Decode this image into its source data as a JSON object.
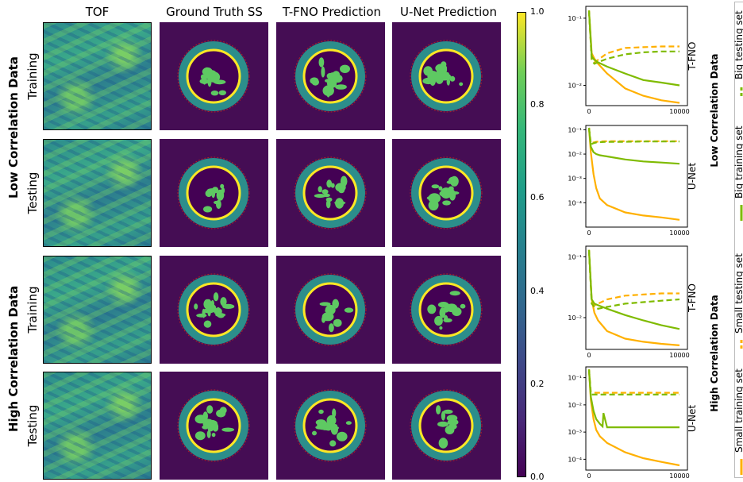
{
  "columns": [
    "TOF",
    "Ground Truth SS",
    "T-FNO Prediction",
    "U-Net Prediction"
  ],
  "groups": [
    {
      "label": "Low Correlation Data",
      "rows": [
        "Training",
        "Testing"
      ]
    },
    {
      "label": "High Correlation Data",
      "rows": [
        "Training",
        "Testing"
      ]
    }
  ],
  "colorbar": {
    "ticks": [
      "0.0",
      "0.2",
      "0.4",
      "0.6",
      "0.8",
      "1.0"
    ],
    "colormap": "viridis"
  },
  "right_group_labels": [
    "Low Correlation Data",
    "High Correlation Data"
  ],
  "legend": [
    "Small training set",
    "Small testing set",
    "Big training set",
    "Big testing set"
  ],
  "colors": {
    "small": "#ffb000",
    "big": "#7fbb00"
  },
  "chart_data": [
    {
      "type": "line",
      "model": "T-FNO",
      "log_y": true,
      "xlim": [
        0,
        10000
      ],
      "ylim": [
        0.005,
        0.15
      ],
      "x_ticks": [
        "0",
        "10000"
      ],
      "y_ticks": [
        "10⁻¹",
        "10⁻²"
      ],
      "series": [
        {
          "name": "Small training set",
          "x": [
            0,
            300,
            600,
            1000,
            2000,
            4000,
            6000,
            8000,
            10000
          ],
          "y": [
            0.13,
            0.03,
            0.025,
            0.021,
            0.015,
            0.009,
            0.007,
            0.006,
            0.0055
          ]
        },
        {
          "name": "Small testing set",
          "x": [
            0,
            300,
            600,
            1000,
            2000,
            4000,
            6000,
            8000,
            10000
          ],
          "y": [
            0.13,
            0.024,
            0.022,
            0.024,
            0.03,
            0.036,
            0.037,
            0.038,
            0.038
          ]
        },
        {
          "name": "Big training set",
          "x": [
            0,
            300,
            600,
            1000,
            2000,
            4000,
            6000,
            8000,
            10000
          ],
          "y": [
            0.13,
            0.027,
            0.024,
            0.022,
            0.019,
            0.015,
            0.012,
            0.011,
            0.01
          ]
        },
        {
          "name": "Big testing set",
          "x": [
            0,
            300,
            600,
            1000,
            2000,
            4000,
            6000,
            8000,
            10000
          ],
          "y": [
            0.13,
            0.024,
            0.021,
            0.022,
            0.025,
            0.029,
            0.031,
            0.032,
            0.032
          ]
        }
      ]
    },
    {
      "type": "line",
      "model": "U-Net",
      "log_y": true,
      "xlim": [
        0,
        10000
      ],
      "ylim": [
        1e-05,
        0.15
      ],
      "x_ticks": [
        "0",
        "10000"
      ],
      "y_ticks": [
        "10⁻¹",
        "10⁻²",
        "10⁻³",
        "10⁻⁴"
      ],
      "series": [
        {
          "name": "Small training set",
          "x": [
            0,
            200,
            500,
            800,
            1200,
            2000,
            4000,
            6000,
            8000,
            10000
          ],
          "y": [
            0.12,
            0.012,
            0.0015,
            0.0004,
            0.00015,
            8e-05,
            4e-05,
            3e-05,
            2.5e-05,
            2e-05
          ]
        },
        {
          "name": "Small testing set",
          "x": [
            0,
            200,
            500,
            800,
            1200,
            2000,
            4000,
            6000,
            8000,
            10000
          ],
          "y": [
            0.12,
            0.028,
            0.03,
            0.032,
            0.033,
            0.034,
            0.034,
            0.034,
            0.034,
            0.034
          ]
        },
        {
          "name": "Big training set",
          "x": [
            0,
            200,
            500,
            800,
            1200,
            2000,
            4000,
            6000,
            8000,
            10000
          ],
          "y": [
            0.12,
            0.02,
            0.012,
            0.01,
            0.009,
            0.008,
            0.006,
            0.005,
            0.0045,
            0.004
          ]
        },
        {
          "name": "Big testing set",
          "x": [
            0,
            200,
            500,
            800,
            1200,
            2000,
            4000,
            6000,
            8000,
            10000
          ],
          "y": [
            0.12,
            0.025,
            0.028,
            0.03,
            0.031,
            0.032,
            0.032,
            0.033,
            0.033,
            0.033
          ]
        }
      ]
    },
    {
      "type": "line",
      "model": "T-FNO",
      "log_y": true,
      "xlim": [
        0,
        10000
      ],
      "ylim": [
        0.003,
        0.15
      ],
      "x_ticks": [
        "0",
        "10000"
      ],
      "y_ticks": [
        "10⁻¹",
        "10⁻²"
      ],
      "series": [
        {
          "name": "Small training set",
          "x": [
            0,
            300,
            600,
            1000,
            2000,
            4000,
            6000,
            8000,
            10000
          ],
          "y": [
            0.13,
            0.02,
            0.012,
            0.009,
            0.006,
            0.0045,
            0.004,
            0.0037,
            0.0035
          ]
        },
        {
          "name": "Small testing set",
          "x": [
            0,
            300,
            600,
            1000,
            2000,
            4000,
            6000,
            8000,
            10000
          ],
          "y": [
            0.13,
            0.018,
            0.016,
            0.017,
            0.02,
            0.023,
            0.024,
            0.025,
            0.025
          ]
        },
        {
          "name": "Big training set",
          "x": [
            0,
            300,
            600,
            1000,
            2000,
            4000,
            6000,
            8000,
            10000
          ],
          "y": [
            0.13,
            0.02,
            0.017,
            0.016,
            0.014,
            0.011,
            0.009,
            0.0075,
            0.0065
          ]
        },
        {
          "name": "Big testing set",
          "x": [
            0,
            300,
            600,
            1000,
            2000,
            4000,
            6000,
            8000,
            10000
          ],
          "y": [
            0.13,
            0.017,
            0.015,
            0.014,
            0.015,
            0.017,
            0.018,
            0.019,
            0.02
          ]
        }
      ]
    },
    {
      "type": "line",
      "model": "U-Net",
      "log_y": true,
      "xlim": [
        0,
        10000
      ],
      "ylim": [
        4e-05,
        0.25
      ],
      "x_ticks": [
        "0",
        "10000"
      ],
      "y_ticks": [
        "10⁻¹",
        "10⁻²",
        "10⁻³",
        "10⁻⁴"
      ],
      "series": [
        {
          "name": "Small training set",
          "x": [
            0,
            200,
            500,
            800,
            1200,
            2000,
            4000,
            6000,
            8000,
            10000
          ],
          "y": [
            0.2,
            0.015,
            0.003,
            0.0012,
            0.0007,
            0.0004,
            0.00018,
            0.00011,
            8e-05,
            6e-05
          ]
        },
        {
          "name": "Small testing set",
          "x": [
            0,
            200,
            500,
            800,
            1200,
            2000,
            4000,
            6000,
            8000,
            10000
          ],
          "y": [
            0.2,
            0.03,
            0.028,
            0.028,
            0.028,
            0.028,
            0.028,
            0.028,
            0.028,
            0.028
          ]
        },
        {
          "name": "Big training set",
          "x": [
            0,
            200,
            500,
            800,
            1200,
            1500,
            1600,
            2000,
            4000,
            6000,
            8000,
            10000
          ],
          "y": [
            0.2,
            0.02,
            0.006,
            0.003,
            0.002,
            0.0016,
            0.005,
            0.0015,
            0.0015,
            0.0015,
            0.0015,
            0.0015
          ]
        },
        {
          "name": "Big testing set",
          "x": [
            0,
            200,
            500,
            800,
            1200,
            2000,
            4000,
            6000,
            8000,
            10000
          ],
          "y": [
            0.2,
            0.024,
            0.024,
            0.024,
            0.024,
            0.024,
            0.024,
            0.024,
            0.024,
            0.024
          ]
        }
      ]
    }
  ]
}
